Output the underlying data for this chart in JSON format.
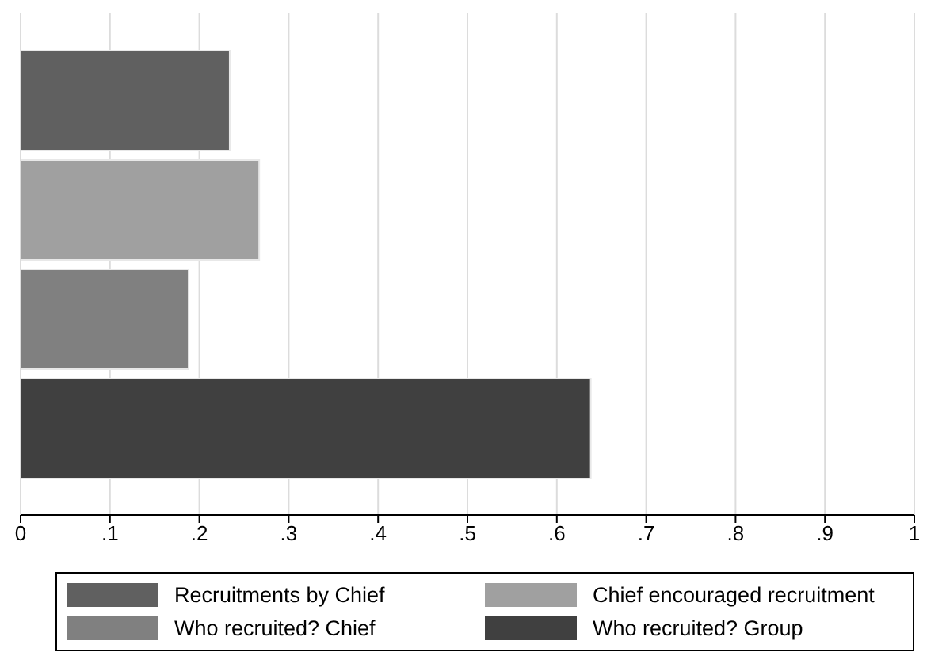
{
  "chart_data": {
    "type": "bar",
    "orientation": "horizontal",
    "categories": [
      null
    ],
    "series": [
      {
        "name": "Recruitments by Chief",
        "color": "#606060",
        "values": [
          0.234
        ]
      },
      {
        "name": "Chief encouraged recruitment",
        "color": "#a0a0a0",
        "values": [
          0.267
        ]
      },
      {
        "name": "Who recruited? Chief",
        "color": "#808080",
        "values": [
          0.188
        ]
      },
      {
        "name": "Who recruited? Group",
        "color": "#404040",
        "values": [
          0.638
        ]
      }
    ],
    "xlim": [
      0,
      1
    ],
    "xticks": [
      0,
      {
        "value": 0.1,
        "label": ".1"
      },
      {
        "value": 0.2,
        "label": ".2"
      },
      {
        "value": 0.3,
        "label": ".3"
      },
      {
        "value": 0.4,
        "label": ".4"
      },
      {
        "value": 0.5,
        "label": ".5"
      },
      {
        "value": 0.6,
        "label": ".6"
      },
      {
        "value": 0.7,
        "label": ".7"
      },
      {
        "value": 0.8,
        "label": ".8"
      },
      {
        "value": 0.9,
        "label": ".9"
      },
      1
    ],
    "grid": "x",
    "legend": "bottom"
  }
}
